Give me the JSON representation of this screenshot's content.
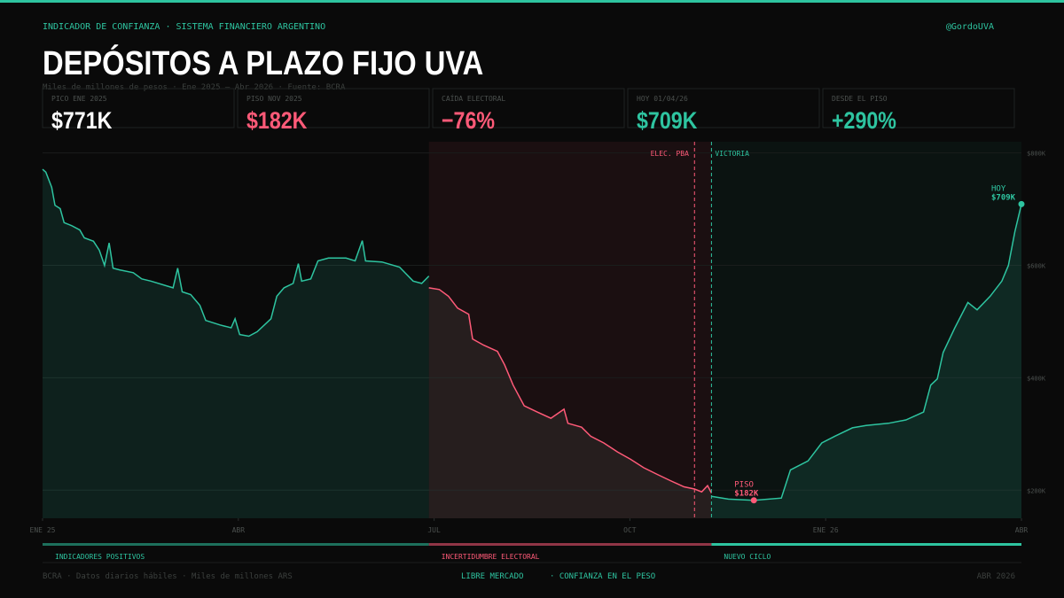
{
  "header": {
    "kicker": "INDICADOR DE CONFIANZA · SISTEMA FINANCIERO ARGENTINO",
    "handle": "@GordoUVA",
    "title": "DEPÓSITOS A PLAZO FIJO UVA",
    "subtitle": "Miles de millones de pesos  ·  Ene 2025 — Abr 2026  ·  Fuente: BCRA"
  },
  "kpis": [
    {
      "label": "PICO ENE 2025",
      "value": "$771K",
      "color": "#ffffff"
    },
    {
      "label": "PISO NOV 2025",
      "value": "$182K",
      "color": "#ff5a78"
    },
    {
      "label": "CAÍDA ELECTORAL",
      "value": "−76%",
      "color": "#ff5a78"
    },
    {
      "label": "HOY 01/04/26",
      "value": "$709K",
      "color": "#2ec4a0"
    },
    {
      "label": "DESDE EL PISO",
      "value": "+290%",
      "color": "#2ec4a0"
    }
  ],
  "chart_data": {
    "type": "line",
    "xlim": [
      0,
      15
    ],
    "xticks": [
      {
        "value": 0,
        "label": "ENE 25"
      },
      {
        "value": 3,
        "label": "ABR"
      },
      {
        "value": 6,
        "label": "JUL"
      },
      {
        "value": 9,
        "label": "OCT"
      },
      {
        "value": 12,
        "label": "ENE 26"
      },
      {
        "value": 15,
        "label": "ABR"
      }
    ],
    "ylim": [
      150,
      820
    ],
    "yticks": [
      {
        "value": 200,
        "label": "$200K"
      },
      {
        "value": 400,
        "label": "$400K"
      },
      {
        "value": 600,
        "label": "$600K"
      },
      {
        "value": 800,
        "label": "$800K"
      }
    ],
    "grid": true,
    "annotations": [
      {
        "text": "ELEC. PBA",
        "x": 9.99,
        "color": "#ff5a78"
      },
      {
        "text": "VICTORIA",
        "x": 10.25,
        "color": "#2ec4a0"
      }
    ],
    "series": [
      {
        "name": "INDICADORES POSITIVOS",
        "color": "#2ec4a0",
        "x": [
          0,
          0.05,
          0.14,
          0.19,
          0.27,
          0.33,
          0.44,
          0.57,
          0.64,
          0.78,
          0.87,
          0.95,
          1.02,
          1.08,
          1.18,
          1.39,
          1.52,
          1.66,
          2.0,
          2.07,
          2.14,
          2.27,
          2.41,
          2.5,
          2.72,
          2.89,
          2.95,
          3.02,
          3.16,
          3.29,
          3.5,
          3.59,
          3.7,
          3.84,
          3.92,
          3.97,
          4.11,
          4.22,
          4.38,
          4.65,
          4.79,
          4.9,
          4.95,
          5.2,
          5.47,
          5.68,
          5.81,
          5.92
        ],
        "values": [
          771,
          766,
          739,
          707,
          701,
          676,
          671,
          663,
          649,
          643,
          627,
          600,
          640,
          595,
          592,
          587,
          576,
          572,
          560,
          595,
          553,
          548,
          529,
          502,
          494,
          489,
          505,
          477,
          474,
          482,
          505,
          545,
          560,
          568,
          603,
          572,
          576,
          608,
          613,
          613,
          608,
          644,
          608,
          606,
          597,
          572,
          568,
          581
        ]
      },
      {
        "name": "INCERTIDUMBRE ELECTORAL",
        "color": "#ff5a78",
        "x": [
          5.92,
          6.08,
          6.22,
          6.36,
          6.53,
          6.59,
          6.76,
          6.97,
          7.08,
          7.21,
          7.38,
          7.58,
          7.79,
          7.99,
          8.05,
          8.26,
          8.4,
          8.6,
          8.81,
          9.01,
          9.21,
          9.42,
          9.62,
          9.83,
          9.99,
          10.1,
          10.19,
          10.25
        ],
        "values": [
          560,
          557,
          545,
          524,
          513,
          469,
          458,
          447,
          423,
          387,
          350,
          339,
          328,
          344,
          319,
          312,
          296,
          284,
          268,
          255,
          240,
          228,
          217,
          206,
          202,
          197,
          208,
          195
        ]
      },
      {
        "name": "NUEVO CICLO",
        "color": "#2ec4a0",
        "x": [
          10.25,
          10.51,
          10.9,
          11.32,
          11.46,
          11.73,
          11.94,
          12.14,
          12.41,
          12.62,
          12.96,
          13.23,
          13.5,
          13.61,
          13.71,
          13.8,
          13.98,
          14.18,
          14.32,
          14.52,
          14.7,
          14.8,
          14.9,
          15.0
        ],
        "values": [
          189,
          184,
          182,
          186,
          236,
          252,
          284,
          296,
          311,
          315,
          319,
          325,
          339,
          387,
          398,
          445,
          489,
          534,
          521,
          545,
          572,
          600,
          660,
          709
        ],
        "value_labels": [
          null,
          null,
          "$182K",
          null,
          null,
          null,
          null,
          null,
          null,
          null,
          null,
          null,
          null,
          null,
          null,
          null,
          null,
          null,
          null,
          null,
          null,
          null,
          null,
          "$709K"
        ],
        "point_titles": [
          null,
          null,
          "PISO",
          null,
          null,
          null,
          null,
          null,
          null,
          null,
          null,
          null,
          null,
          null,
          null,
          null,
          null,
          null,
          null,
          null,
          null,
          null,
          null,
          "HOY"
        ]
      }
    ]
  },
  "footer": {
    "left": "BCRA · Datos diarios hábiles · Miles de millones ARS",
    "center": [
      "LIBRE MERCADO",
      "· CONFIANZA EN EL PESO"
    ],
    "right": "ABR 2026"
  }
}
